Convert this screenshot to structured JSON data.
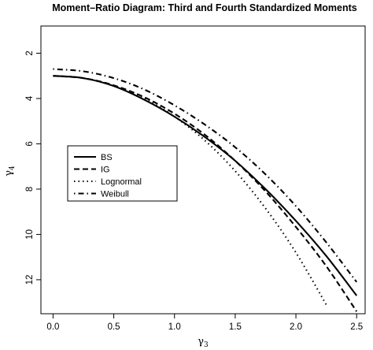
{
  "chart_data": {
    "type": "line",
    "title": "Moment–Ratio Diagram: Third and Fourth Standardized Moments",
    "xlabel": {
      "symbol": "γ",
      "sub": "3"
    },
    "ylabel": {
      "symbol": "γ",
      "sub": "4"
    },
    "xlim": [
      -0.1,
      2.57
    ],
    "ylim": [
      13.5,
      0.8
    ],
    "y_inverted": true,
    "xticks": [
      0.0,
      0.5,
      1.0,
      1.5,
      2.0,
      2.5
    ],
    "xtick_labels": [
      "0.0",
      "0.5",
      "1.0",
      "1.5",
      "2.0",
      "2.5"
    ],
    "yticks": [
      2,
      4,
      6,
      8,
      10,
      12
    ],
    "ytick_labels": [
      "2",
      "4",
      "6",
      "8",
      "10",
      "12"
    ],
    "grid": false,
    "legend_position": "left-middle",
    "series": [
      {
        "name": "BS",
        "style": "solid",
        "x": [
          0,
          0.25,
          0.5,
          0.75,
          1.0,
          1.25,
          1.5,
          1.75,
          2.0,
          2.25,
          2.5
        ],
        "y": [
          3.0,
          3.1,
          3.45,
          4.05,
          4.8,
          5.7,
          6.75,
          8.0,
          9.4,
          10.95,
          12.7
        ]
      },
      {
        "name": "IG",
        "style": "dashed",
        "x": [
          0,
          0.25,
          0.5,
          0.75,
          1.0,
          1.25,
          1.5,
          1.75,
          2.0,
          2.25,
          2.5
        ],
        "y": [
          3.0,
          3.1,
          3.42,
          3.94,
          4.67,
          5.6,
          6.75,
          8.1,
          9.67,
          11.4,
          13.4
        ]
      },
      {
        "name": "Lognormal",
        "style": "dotted",
        "x": [
          0,
          0.25,
          0.5,
          0.75,
          1.0,
          1.25,
          1.5,
          1.75,
          2.0,
          2.25
        ],
        "y": [
          3.0,
          3.1,
          3.44,
          4.0,
          4.8,
          5.85,
          7.2,
          8.85,
          10.8,
          13.1
        ]
      },
      {
        "name": "Weibull",
        "style": "dashdot",
        "x": [
          0,
          0.25,
          0.5,
          0.75,
          1.0,
          1.25,
          1.5,
          1.75,
          2.0,
          2.25,
          2.5
        ],
        "y": [
          2.7,
          2.8,
          3.1,
          3.6,
          4.3,
          5.15,
          6.15,
          7.35,
          8.75,
          10.35,
          12.1
        ]
      }
    ]
  }
}
